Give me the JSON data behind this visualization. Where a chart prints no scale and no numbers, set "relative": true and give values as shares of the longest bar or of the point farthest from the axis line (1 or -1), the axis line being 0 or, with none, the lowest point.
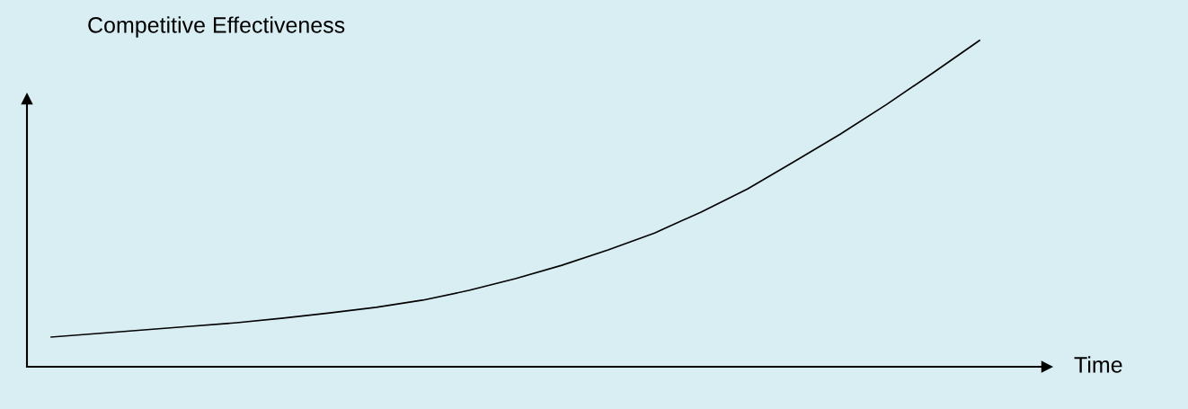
{
  "chart_data": {
    "type": "line",
    "relative": true,
    "ylabel": "Competitive Effectiveness",
    "xlabel": "Time",
    "categories": [
      null,
      null,
      null,
      null,
      null,
      null,
      null,
      null,
      null,
      null,
      null,
      null,
      null,
      null,
      null,
      null,
      null,
      null,
      null,
      null,
      null
    ],
    "series": [
      {
        "color": "#000000",
        "values": [
          0.091,
          0.102,
          0.113,
          0.124,
          0.135,
          0.149,
          0.165,
          0.182,
          0.204,
          0.234,
          0.27,
          0.311,
          0.358,
          0.41,
          0.474,
          0.545,
          0.628,
          0.713,
          0.804,
          0.901,
          1.0
        ]
      }
    ],
    "grid": false,
    "marker": "none",
    "line_style": "solid"
  }
}
